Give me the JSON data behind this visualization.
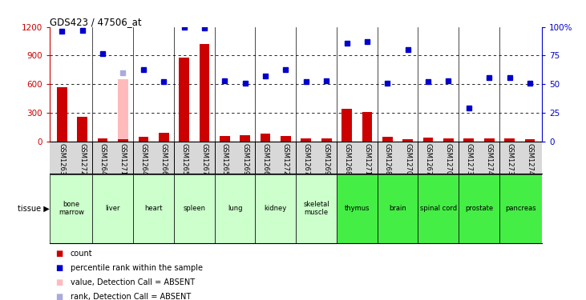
{
  "title": "GDS423 / 47506_at",
  "samples": [
    "GSM12635",
    "GSM12724",
    "GSM12640",
    "GSM12719",
    "GSM12645",
    "GSM12665",
    "GSM12650",
    "GSM12670",
    "GSM12655",
    "GSM12699",
    "GSM12660",
    "GSM12729",
    "GSM12675",
    "GSM12694",
    "GSM12684",
    "GSM12714",
    "GSM12689",
    "GSM12709",
    "GSM12679",
    "GSM12704",
    "GSM12734",
    "GSM12744",
    "GSM12739",
    "GSM12749"
  ],
  "tissues": [
    {
      "name": "bone\nmarrow",
      "start": 0,
      "end": 2,
      "color": "#ccffcc"
    },
    {
      "name": "liver",
      "start": 2,
      "end": 4,
      "color": "#ccffcc"
    },
    {
      "name": "heart",
      "start": 4,
      "end": 6,
      "color": "#ccffcc"
    },
    {
      "name": "spleen",
      "start": 6,
      "end": 8,
      "color": "#ccffcc"
    },
    {
      "name": "lung",
      "start": 8,
      "end": 10,
      "color": "#ccffcc"
    },
    {
      "name": "kidney",
      "start": 10,
      "end": 12,
      "color": "#ccffcc"
    },
    {
      "name": "skeletal\nmuscle",
      "start": 12,
      "end": 14,
      "color": "#ccffcc"
    },
    {
      "name": "thymus",
      "start": 14,
      "end": 16,
      "color": "#44ee44"
    },
    {
      "name": "brain",
      "start": 16,
      "end": 18,
      "color": "#44ee44"
    },
    {
      "name": "spinal cord",
      "start": 18,
      "end": 20,
      "color": "#44ee44"
    },
    {
      "name": "prostate",
      "start": 20,
      "end": 22,
      "color": "#44ee44"
    },
    {
      "name": "pancreas",
      "start": 22,
      "end": 24,
      "color": "#44ee44"
    }
  ],
  "bar_values": [
    570,
    255,
    30,
    20,
    50,
    90,
    880,
    1020,
    55,
    65,
    85,
    55,
    30,
    30,
    340,
    310,
    50,
    25,
    40,
    30,
    30,
    30,
    30,
    25
  ],
  "bar_absent": [
    false,
    false,
    false,
    false,
    false,
    false,
    false,
    false,
    false,
    false,
    false,
    false,
    false,
    false,
    false,
    false,
    false,
    false,
    false,
    false,
    false,
    false,
    false,
    false
  ],
  "dot_values": [
    96,
    97,
    77,
    60,
    63,
    52,
    100,
    99,
    53,
    51,
    57,
    63,
    52,
    53,
    86,
    87,
    51,
    80,
    52,
    53,
    29,
    56,
    56,
    51
  ],
  "dot_absent": [
    false,
    false,
    false,
    true,
    false,
    false,
    false,
    false,
    false,
    false,
    false,
    false,
    false,
    false,
    false,
    false,
    false,
    false,
    false,
    false,
    false,
    false,
    false,
    false
  ],
  "absent_bar_index": 3,
  "absent_bar_value": 650,
  "ylim_left": [
    0,
    1200
  ],
  "ylim_right": [
    0,
    100
  ],
  "yticks_left": [
    0,
    300,
    600,
    900,
    1200
  ],
  "yticks_right": [
    0,
    25,
    50,
    75,
    100
  ],
  "ytick_labels_right": [
    "0",
    "25",
    "50",
    "75",
    "100%"
  ],
  "bar_color": "#cc0000",
  "bar_absent_color": "#ffbbbb",
  "dot_color": "#0000cc",
  "dot_absent_color": "#aaaadd",
  "bg_color": "#ffffff"
}
